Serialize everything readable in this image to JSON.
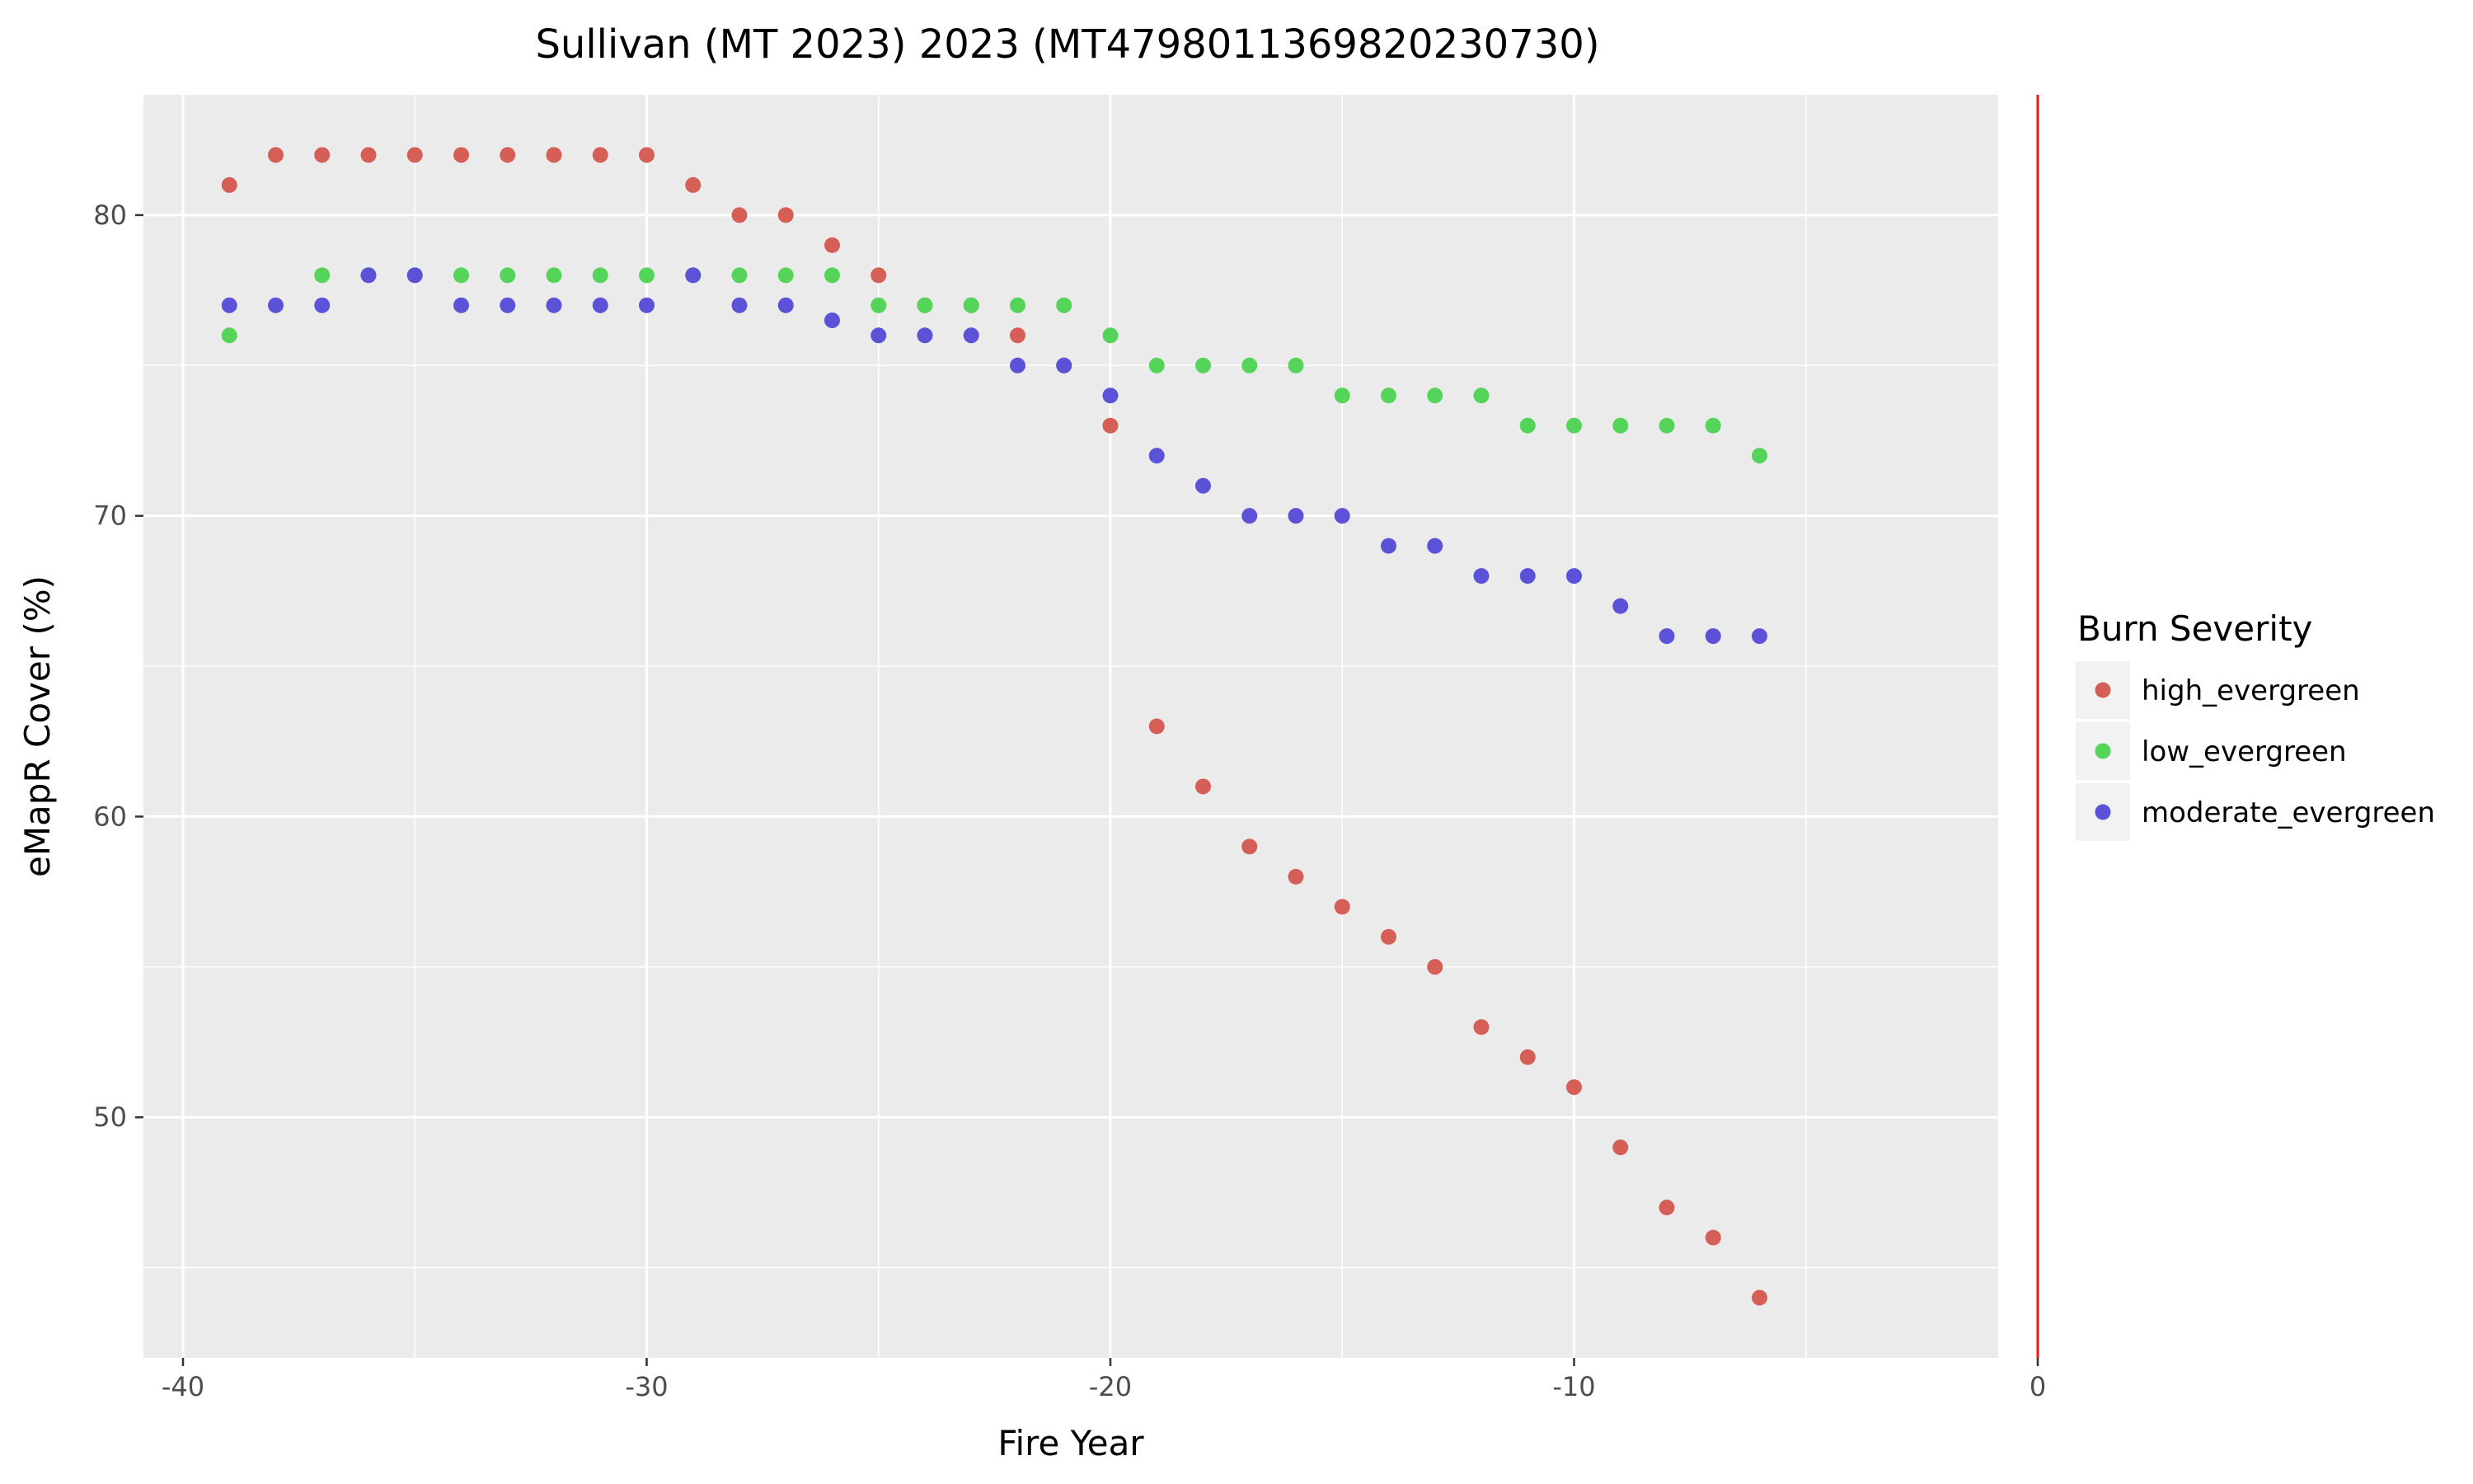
{
  "chart_data": {
    "type": "scatter",
    "title": "Sullivan (MT 2023) 2023 (MT4798011369820230730)",
    "xlabel": "Fire Year",
    "ylabel": "eMapR Cover (%)",
    "xlim": [
      -40,
      0
    ],
    "ylim": [
      42,
      84
    ],
    "x_ticks": [
      -40,
      -30,
      -20,
      -10,
      0
    ],
    "x_tick_labels": [
      "-40",
      "-30",
      "-20",
      "-10",
      "0"
    ],
    "y_ticks": [
      50,
      60,
      70,
      80
    ],
    "y_tick_labels": [
      "50",
      "60",
      "70",
      "80"
    ],
    "grid": true,
    "legend_title": "Burn Severity",
    "legend_position": "right",
    "reference_line": {
      "x": 0,
      "color": "#e31a1c"
    },
    "series": [
      {
        "name": "high_evergreen",
        "color": "#d55e57",
        "x": [
          -39,
          -38,
          -37,
          -36,
          -35,
          -34,
          -33,
          -32,
          -31,
          -30,
          -29,
          -28,
          -27,
          -26,
          -25,
          -24,
          -23,
          -22,
          -21,
          -20,
          -19,
          -18,
          -17,
          -16,
          -15,
          -14,
          -13,
          -12,
          -11,
          -10,
          -9,
          -8,
          -7,
          -6
        ],
        "y": [
          81,
          82,
          82,
          82,
          82,
          82,
          82,
          82,
          82,
          82,
          81,
          80,
          80,
          79,
          78,
          77,
          77,
          76,
          75,
          73,
          63,
          61,
          59,
          58,
          57,
          56,
          55,
          53,
          52,
          51,
          49,
          47,
          46,
          44
        ]
      },
      {
        "name": "low_evergreen",
        "color": "#55d45a",
        "x": [
          -39,
          -37,
          -36,
          -35,
          -34,
          -33,
          -32,
          -31,
          -30,
          -29,
          -28,
          -27,
          -26,
          -25,
          -24,
          -23,
          -22,
          -21,
          -20,
          -19,
          -18,
          -17,
          -16,
          -15,
          -14,
          -13,
          -12,
          -11,
          -10,
          -9,
          -8,
          -7,
          -6
        ],
        "y": [
          76,
          78,
          78,
          78,
          78,
          78,
          78,
          78,
          78,
          78,
          78,
          78,
          78,
          77,
          77,
          77,
          77,
          77,
          76,
          75,
          75,
          75,
          75,
          74,
          74,
          74,
          74,
          73,
          73,
          73,
          73,
          73,
          72
        ]
      },
      {
        "name": "moderate_evergreen",
        "color": "#5b52d8",
        "x": [
          -39,
          -38,
          -37,
          -36,
          -35,
          -34,
          -33,
          -32,
          -31,
          -30,
          -29,
          -28,
          -27,
          -26,
          -25,
          -24,
          -23,
          -22,
          -21,
          -20,
          -19,
          -18,
          -17,
          -16,
          -15,
          -14,
          -13,
          -12,
          -11,
          -10,
          -9,
          -8,
          -7,
          -6
        ],
        "y": [
          77,
          77,
          77,
          78,
          78,
          77,
          77,
          77,
          77,
          77,
          78,
          77,
          77,
          76.5,
          76,
          76,
          76,
          75,
          75,
          74,
          72,
          71,
          70,
          70,
          70,
          69,
          69,
          68,
          68,
          68,
          67,
          66,
          66,
          66
        ]
      }
    ]
  }
}
